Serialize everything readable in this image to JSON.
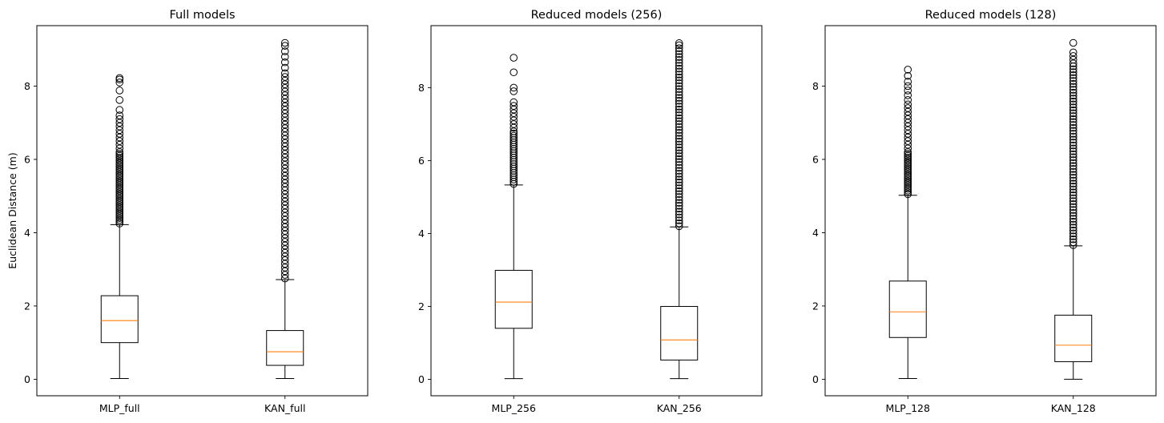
{
  "chart_data": [
    {
      "type": "boxplot",
      "title": "Full models",
      "ylabel": "Euclidean Distance (m)",
      "ylim": [
        -0.45,
        9.65
      ],
      "yticks": [
        0,
        2,
        4,
        6,
        8
      ],
      "categories": [
        "MLP_full",
        "KAN_full"
      ],
      "boxes": [
        {
          "label": "MLP_full",
          "whisker_low": 0.02,
          "q1": 1.0,
          "median": 1.6,
          "q3": 2.28,
          "whisker_high": 4.22,
          "outliers": [
            4.25,
            4.3,
            4.35,
            4.4,
            4.45,
            4.5,
            4.55,
            4.6,
            4.65,
            4.7,
            4.75,
            4.8,
            4.85,
            4.9,
            4.95,
            5.0,
            5.05,
            5.1,
            5.15,
            5.2,
            5.25,
            5.3,
            5.35,
            5.4,
            5.45,
            5.5,
            5.55,
            5.6,
            5.65,
            5.7,
            5.75,
            5.8,
            5.85,
            5.9,
            5.95,
            6.0,
            6.05,
            6.1,
            6.15,
            6.2,
            6.3,
            6.4,
            6.5,
            6.6,
            6.7,
            6.8,
            6.9,
            7.0,
            7.1,
            7.2,
            7.35,
            7.62,
            7.88,
            8.1,
            8.18,
            8.22
          ]
        },
        {
          "label": "KAN_full",
          "whisker_low": 0.02,
          "q1": 0.38,
          "median": 0.75,
          "q3": 1.33,
          "whisker_high": 2.72,
          "outliers": [
            2.75,
            2.85,
            2.95,
            3.05,
            3.15,
            3.25,
            3.35,
            3.45,
            3.55,
            3.65,
            3.75,
            3.85,
            3.95,
            4.05,
            4.15,
            4.25,
            4.35,
            4.45,
            4.55,
            4.65,
            4.75,
            4.85,
            4.95,
            5.05,
            5.15,
            5.25,
            5.35,
            5.45,
            5.55,
            5.65,
            5.75,
            5.85,
            5.95,
            6.05,
            6.15,
            6.25,
            6.35,
            6.45,
            6.55,
            6.65,
            6.75,
            6.85,
            6.95,
            7.05,
            7.15,
            7.25,
            7.35,
            7.45,
            7.55,
            7.65,
            7.75,
            7.85,
            7.95,
            8.05,
            8.15,
            8.25,
            8.35,
            8.5,
            8.65,
            8.8,
            8.95,
            9.1,
            9.18
          ]
        }
      ]
    },
    {
      "type": "boxplot",
      "title": "Reduced models (256)",
      "ylabel": "",
      "ylim": [
        -0.45,
        9.7
      ],
      "yticks": [
        0,
        2,
        4,
        6,
        8
      ],
      "categories": [
        "MLP_256",
        "KAN_256"
      ],
      "boxes": [
        {
          "label": "MLP_256",
          "whisker_low": 0.02,
          "q1": 1.4,
          "median": 2.12,
          "q3": 2.99,
          "whisker_high": 5.33,
          "outliers": [
            5.36,
            5.42,
            5.48,
            5.54,
            5.6,
            5.66,
            5.72,
            5.78,
            5.84,
            5.9,
            5.96,
            6.02,
            6.08,
            6.14,
            6.2,
            6.26,
            6.32,
            6.38,
            6.44,
            6.5,
            6.56,
            6.62,
            6.68,
            6.74,
            6.8,
            6.9,
            7.0,
            7.1,
            7.2,
            7.3,
            7.4,
            7.5,
            7.6,
            7.9,
            8.0,
            8.42,
            8.82
          ]
        },
        {
          "label": "KAN_256",
          "whisker_low": 0.02,
          "q1": 0.53,
          "median": 1.08,
          "q3": 2.0,
          "whisker_high": 4.18,
          "outliers": [
            4.2,
            4.28,
            4.36,
            4.44,
            4.52,
            4.6,
            4.68,
            4.76,
            4.84,
            4.92,
            5.0,
            5.08,
            5.16,
            5.24,
            5.32,
            5.4,
            5.48,
            5.56,
            5.64,
            5.72,
            5.8,
            5.88,
            5.96,
            6.04,
            6.12,
            6.2,
            6.28,
            6.36,
            6.44,
            6.52,
            6.6,
            6.68,
            6.76,
            6.84,
            6.92,
            7.0,
            7.08,
            7.16,
            7.24,
            7.32,
            7.4,
            7.48,
            7.56,
            7.64,
            7.72,
            7.8,
            7.88,
            7.96,
            8.04,
            8.12,
            8.2,
            8.28,
            8.36,
            8.44,
            8.52,
            8.6,
            8.68,
            8.76,
            8.84,
            8.92,
            9.0,
            9.08,
            9.16,
            9.22
          ]
        }
      ]
    },
    {
      "type": "boxplot",
      "title": "Reduced models (128)",
      "ylabel": "",
      "ylim": [
        -0.45,
        9.65
      ],
      "yticks": [
        0,
        2,
        4,
        6,
        8
      ],
      "categories": [
        "MLP_128",
        "KAN_128"
      ],
      "boxes": [
        {
          "label": "MLP_128",
          "whisker_low": 0.02,
          "q1": 1.14,
          "median": 1.84,
          "q3": 2.68,
          "whisker_high": 5.02,
          "outliers": [
            5.05,
            5.1,
            5.15,
            5.2,
            5.25,
            5.3,
            5.35,
            5.4,
            5.45,
            5.5,
            5.55,
            5.6,
            5.65,
            5.7,
            5.75,
            5.8,
            5.85,
            5.9,
            5.95,
            6.0,
            6.05,
            6.1,
            6.15,
            6.2,
            6.3,
            6.4,
            6.5,
            6.6,
            6.7,
            6.8,
            6.9,
            7.0,
            7.1,
            7.2,
            7.3,
            7.4,
            7.5,
            7.62,
            7.75,
            7.88,
            8.0,
            8.12,
            8.28,
            8.45
          ]
        },
        {
          "label": "KAN_128",
          "whisker_low": 0.0,
          "q1": 0.48,
          "median": 0.93,
          "q3": 1.75,
          "whisker_high": 3.64,
          "outliers": [
            3.66,
            3.74,
            3.82,
            3.9,
            3.98,
            4.06,
            4.14,
            4.22,
            4.3,
            4.38,
            4.46,
            4.54,
            4.62,
            4.7,
            4.78,
            4.86,
            4.94,
            5.02,
            5.1,
            5.18,
            5.26,
            5.34,
            5.42,
            5.5,
            5.58,
            5.66,
            5.74,
            5.82,
            5.9,
            5.98,
            6.06,
            6.14,
            6.22,
            6.3,
            6.38,
            6.46,
            6.54,
            6.62,
            6.7,
            6.78,
            6.86,
            6.94,
            7.02,
            7.1,
            7.18,
            7.26,
            7.34,
            7.42,
            7.5,
            7.58,
            7.66,
            7.74,
            7.82,
            7.9,
            7.98,
            8.06,
            8.14,
            8.22,
            8.3,
            8.38,
            8.46,
            8.54,
            8.62,
            8.72,
            8.82,
            8.92,
            9.18
          ]
        }
      ]
    }
  ],
  "style": {
    "box_color": "#000000",
    "median_color": "#ff7f0e",
    "background": "#ffffff"
  }
}
